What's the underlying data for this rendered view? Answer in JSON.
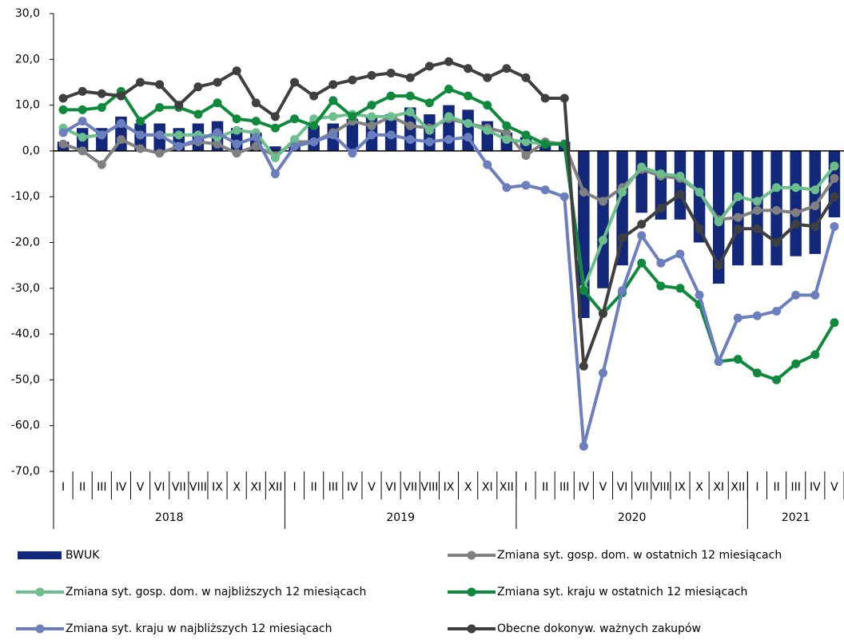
{
  "chart_data": {
    "type": "combo",
    "categories": [
      "I",
      "II",
      "III",
      "IV",
      "V",
      "VI",
      "VII",
      "VIII",
      "IX",
      "X",
      "XI",
      "XII",
      "I",
      "II",
      "III",
      "IV",
      "V",
      "VI",
      "VII",
      "VIII",
      "IX",
      "X",
      "XI",
      "XII",
      "I",
      "II",
      "III",
      "IV",
      "V",
      "VI",
      "VII",
      "VIII",
      "IX",
      "X",
      "XI",
      "XII",
      "I",
      "II",
      "III",
      "IV",
      "V"
    ],
    "years": [
      "2018",
      "2019",
      "2020",
      "2021"
    ],
    "ylim": [
      -70,
      30
    ],
    "yticks": [
      {
        "value": 30,
        "label": "30,0"
      },
      {
        "value": 20,
        "label": "20,0"
      },
      {
        "value": 10,
        "label": "10,0"
      },
      {
        "value": 0,
        "label": "0,0"
      },
      {
        "value": -10,
        "label": "-10,0"
      },
      {
        "value": -20,
        "label": "-20,0"
      },
      {
        "value": -30,
        "label": "-30,0"
      },
      {
        "value": -40,
        "label": "-40,0"
      },
      {
        "value": -50,
        "label": "-50,0"
      },
      {
        "value": -60,
        "label": "-60,0"
      },
      {
        "value": -70,
        "label": "-70,0"
      }
    ],
    "series": [
      {
        "name": "BWUK",
        "type": "bar",
        "color": "#13287a",
        "values": [
          2,
          5,
          5,
          7.5,
          6,
          6,
          5,
          6,
          6.5,
          5,
          4,
          1,
          1,
          5.5,
          6,
          7,
          7.8,
          8,
          9.5,
          8,
          10,
          9,
          6.5,
          4,
          3,
          2,
          2,
          -36.5,
          -30,
          -25,
          -13.5,
          -15,
          -15,
          -20,
          -29,
          -25,
          -25,
          -25,
          -23,
          -22.5,
          -14.5
        ]
      },
      {
        "name": "Zmiana syt. gosp. dom. w ostatnich 12 miesiącach",
        "type": "line",
        "color": "#808080",
        "values": [
          1.5,
          0,
          -3,
          2.5,
          0.5,
          -0.5,
          1,
          2,
          1.5,
          -0.5,
          1,
          -1,
          2,
          2,
          4,
          6.5,
          5.5,
          7.5,
          5.5,
          5,
          7,
          6,
          5,
          4,
          -1,
          2,
          1.5,
          -9,
          -11,
          -8,
          -4,
          -5.5,
          -6,
          -9,
          -15,
          -14.5,
          -13,
          -13,
          -13.5,
          -12,
          -6
        ]
      },
      {
        "name": "Zmiana syt. gosp. dom. w najbliższych 12 miesiącach",
        "type": "line",
        "color": "#6cbf8c",
        "values": [
          5,
          3,
          3.5,
          6,
          3.5,
          3.5,
          3.5,
          3.5,
          3,
          4.5,
          4,
          -1.5,
          2.5,
          7,
          7.5,
          8,
          7.5,
          7.5,
          8.5,
          4.5,
          7.5,
          6,
          4.5,
          2.5,
          2,
          1.5,
          1.5,
          -30,
          -19.5,
          -9,
          -3.5,
          -5,
          -5.5,
          -9,
          -15.5,
          -10,
          -11,
          -8,
          -8,
          -8.5,
          -3.3
        ]
      },
      {
        "name": "Zmiana syt. kraju w ostatnich 12 miesiącach",
        "type": "line",
        "color": "#0f8a3c",
        "values": [
          9,
          9,
          9.5,
          13,
          6.5,
          9.5,
          9.5,
          8,
          10.5,
          7,
          6.5,
          5,
          7,
          5.5,
          11,
          7.5,
          10,
          12,
          12,
          10.5,
          13.5,
          12,
          10,
          5.5,
          3.5,
          1.5,
          1.5,
          -30.5,
          -35.5,
          -31,
          -24.5,
          -29.5,
          -30,
          -33.5,
          -46,
          -45.5,
          -48.5,
          -50,
          -46.5,
          -44.5,
          -37.5
        ]
      },
      {
        "name": "Zmiana syt. kraju w najbliższych 12 miesiącach",
        "type": "line",
        "color": "#6b7fbf",
        "values": [
          4,
          6.5,
          3.5,
          6,
          3.5,
          3.5,
          1,
          2.5,
          4,
          1.5,
          3,
          -5,
          1,
          2,
          3.5,
          -0.5,
          3.5,
          3.5,
          2.5,
          2,
          2.5,
          3,
          -3,
          -8,
          -7.5,
          -8.5,
          -10,
          -64.5,
          -48.5,
          -30.5,
          -18.5,
          -24.5,
          -22.5,
          -31.5,
          -46,
          -36.5,
          -36,
          -35,
          -31.5,
          -31.5,
          -16.5
        ]
      },
      {
        "name": "Obecne dokonyw. ważnych zakupów",
        "type": "line",
        "color": "#3f3f3f",
        "values": [
          11.5,
          13,
          12.5,
          12,
          15,
          14.5,
          10,
          14,
          15,
          17.5,
          10.5,
          7.5,
          15,
          12,
          14.5,
          15.5,
          16.5,
          17,
          16,
          18.5,
          19.5,
          18,
          16,
          18,
          16,
          11.5,
          11.5,
          -47,
          -35.5,
          -19,
          -16,
          -12.5,
          -9.5,
          -17,
          -25,
          -17,
          -17,
          -20,
          -16,
          -16.5,
          -10
        ]
      }
    ]
  }
}
